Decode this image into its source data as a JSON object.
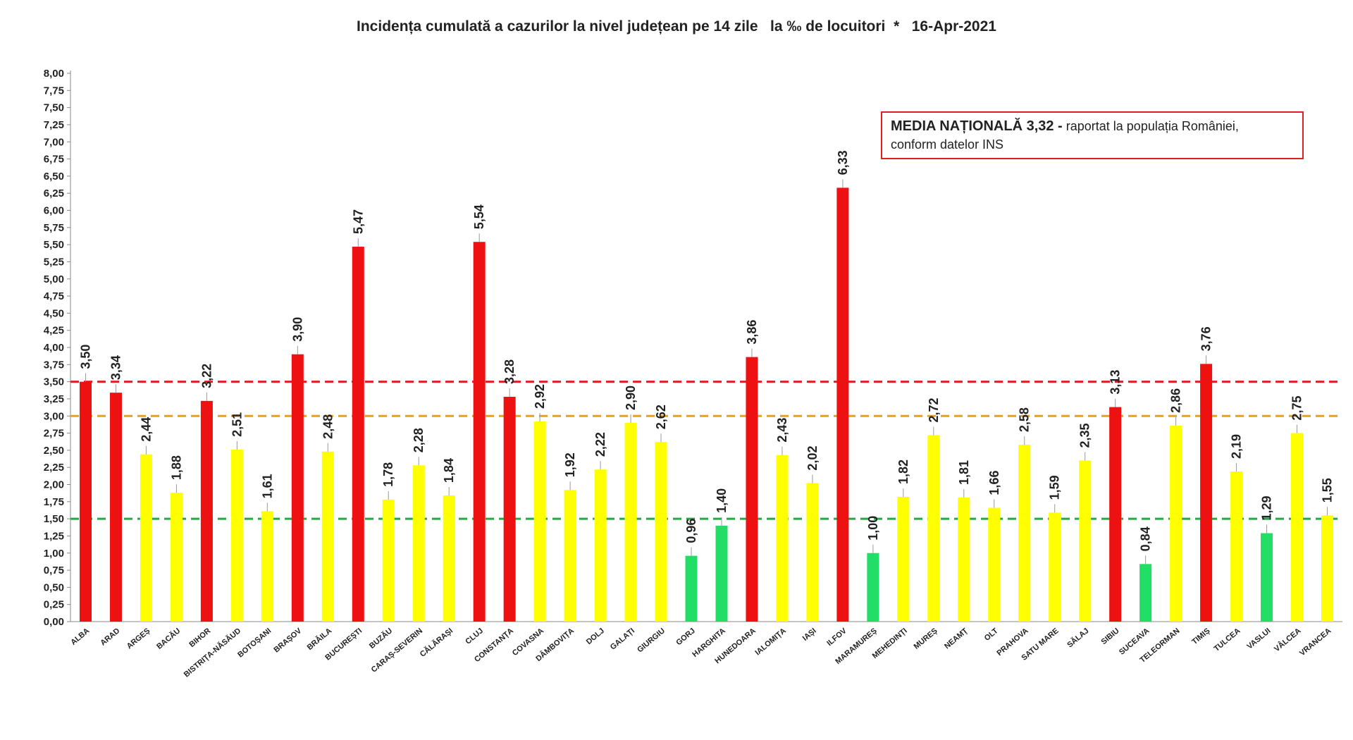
{
  "chart_data": {
    "type": "bar",
    "title": "Incidența cumulată a cazurilor la nivel județean pe 14 zile   la ‰ de locuitori  *   16-Apr-2021",
    "xlabel": "",
    "ylabel": "",
    "ylim": [
      0,
      8
    ],
    "y_tick_step": 0.25,
    "decimal_separator": ",",
    "grid": false,
    "legend": "none",
    "categories": [
      "ALBA",
      "ARAD",
      "ARGEȘ",
      "BACĂU",
      "BIHOR",
      "BISTRIȚA-NĂSĂUD",
      "BOTOȘANI",
      "BRAȘOV",
      "BRĂILA",
      "BUCUREȘTI",
      "BUZĂU",
      "CARAȘ-SEVERIN",
      "CĂLĂRAȘI",
      "CLUJ",
      "CONSTANȚA",
      "COVASNA",
      "DÂMBOVIȚA",
      "DOLJ",
      "GALAȚI",
      "GIURGIU",
      "GORJ",
      "HARGHITA",
      "HUNEDOARA",
      "IALOMIȚA",
      "IAȘI",
      "ILFOV",
      "MARAMUREȘ",
      "MEHEDINȚI",
      "MUREȘ",
      "NEAMȚ",
      "OLT",
      "PRAHOVA",
      "SATU MARE",
      "SĂLAJ",
      "SIBIU",
      "SUCEAVA",
      "TELEORMAN",
      "TIMIȘ",
      "TULCEA",
      "VASLUI",
      "VÂLCEA",
      "VRANCEA"
    ],
    "values": [
      3.5,
      3.34,
      2.44,
      1.88,
      3.22,
      2.51,
      1.61,
      3.9,
      2.48,
      5.47,
      1.78,
      2.28,
      1.84,
      5.54,
      3.28,
      2.92,
      1.92,
      2.22,
      2.9,
      2.62,
      0.96,
      1.4,
      3.86,
      2.43,
      2.02,
      6.33,
      1.0,
      1.82,
      2.72,
      1.81,
      1.66,
      2.58,
      1.59,
      2.35,
      3.13,
      0.84,
      2.86,
      3.76,
      2.19,
      1.29,
      2.75,
      1.55
    ],
    "value_labels": [
      "3,50",
      "3,34",
      "2,44",
      "1,88",
      "3,22",
      "2,51",
      "1,61",
      "3,90",
      "2,48",
      "5,47",
      "1,78",
      "2,28",
      "1,84",
      "5,54",
      "3,28",
      "2,92",
      "1,92",
      "2,22",
      "2,90",
      "2,62",
      "0,96",
      "1,40",
      "3,86",
      "2,43",
      "2,02",
      "6,33",
      "1,00",
      "1,82",
      "2,72",
      "1,81",
      "1,66",
      "2,58",
      "1,59",
      "2,35",
      "3,13",
      "0,84",
      "2,86",
      "3,76",
      "2,19",
      "1,29",
      "2,75",
      "1,55"
    ],
    "thresholds": [
      {
        "value": 3.5,
        "color": "#e02020"
      },
      {
        "value": 3.0,
        "color": "#e6a020"
      },
      {
        "value": 1.5,
        "color": "#22aa44"
      }
    ],
    "colors": {
      "red": "#ee1111",
      "yellow": "#ffff00",
      "green": "#22dd66",
      "axis": "#888888",
      "text": "#222222"
    },
    "note": {
      "bold": "MEDIA NAȚIONALĂ 3,32 -",
      "text": "raportat la populația României,",
      "text2": "conform datelor INS"
    }
  }
}
